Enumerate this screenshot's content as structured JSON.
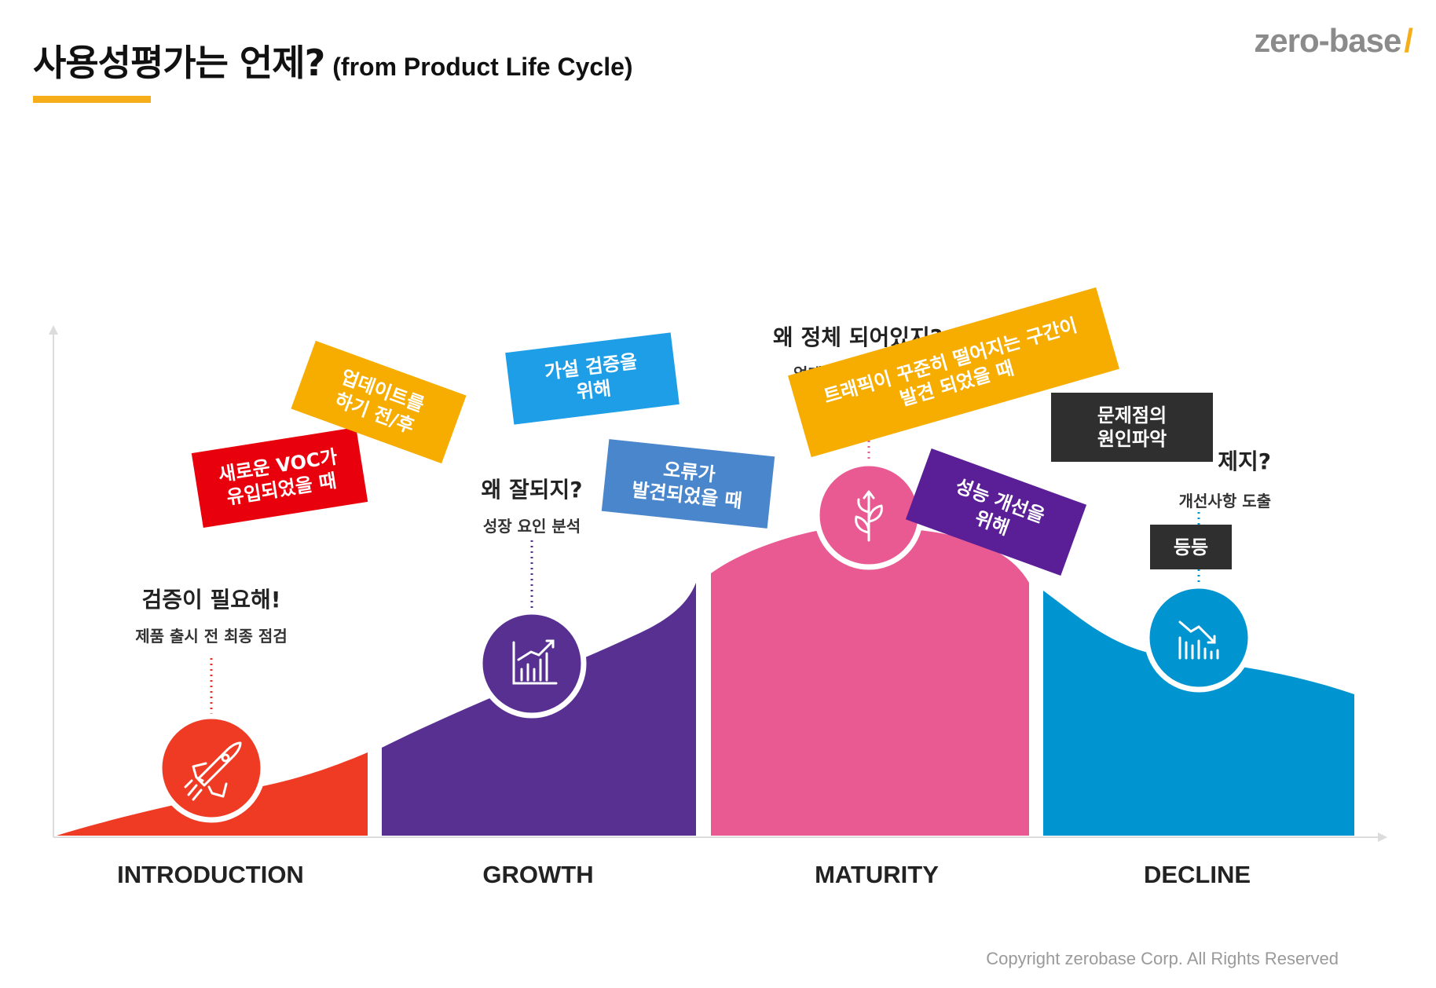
{
  "title": {
    "main": "사용성평가는 언제?",
    "sub": "(from Product Life Cycle)"
  },
  "logo": {
    "text": "zero-base",
    "slash": "/"
  },
  "colors": {
    "accent": "#f6ad1a",
    "introduction": "#ef3b24",
    "growth": "#573092",
    "maturity": "#e95a92",
    "decline": "#0094d0"
  },
  "phases": [
    {
      "label": "INTRODUCTION",
      "heading": "검증이 필요해!",
      "subheading": "제품 출시 전 최종 점검",
      "icon": "rocket-icon"
    },
    {
      "label": "GROWTH",
      "heading": "왜 잘되지?",
      "subheading": "성장 요인 분석",
      "icon": "growth-chart-icon"
    },
    {
      "label": "MATURITY",
      "heading": "왜 정체 되어있지?",
      "subheading": "업데이",
      "icon": "plant-icon"
    },
    {
      "label": "DECLINE",
      "heading": "제지?",
      "subheading": "개선사항 도출",
      "icon": "decline-chart-icon"
    }
  ],
  "stickers": [
    {
      "text": "새로운 VOC가\n유입되었을 때",
      "color": "#e8000c"
    },
    {
      "text": "업데이트를\n하기 전/후",
      "color": "#f6ad00"
    },
    {
      "text": "가설 검증을\n위해",
      "color": "#1f9ee8"
    },
    {
      "text": "오류가\n발견되었을 때",
      "color": "#4a86cc"
    },
    {
      "text": "트래픽이 꾸준히 떨어지는 구간이\n발견 되었을 때",
      "color": "#f6ad00"
    },
    {
      "text": "성능 개선을\n위해",
      "color": "#5a1e96"
    },
    {
      "text": "문제점의\n원인파악",
      "color": "#2f2f2f"
    },
    {
      "text": "등등",
      "color": "#2f2f2f"
    }
  ],
  "copyright": "Copyright zerobase Corp. All Rights Reserved"
}
